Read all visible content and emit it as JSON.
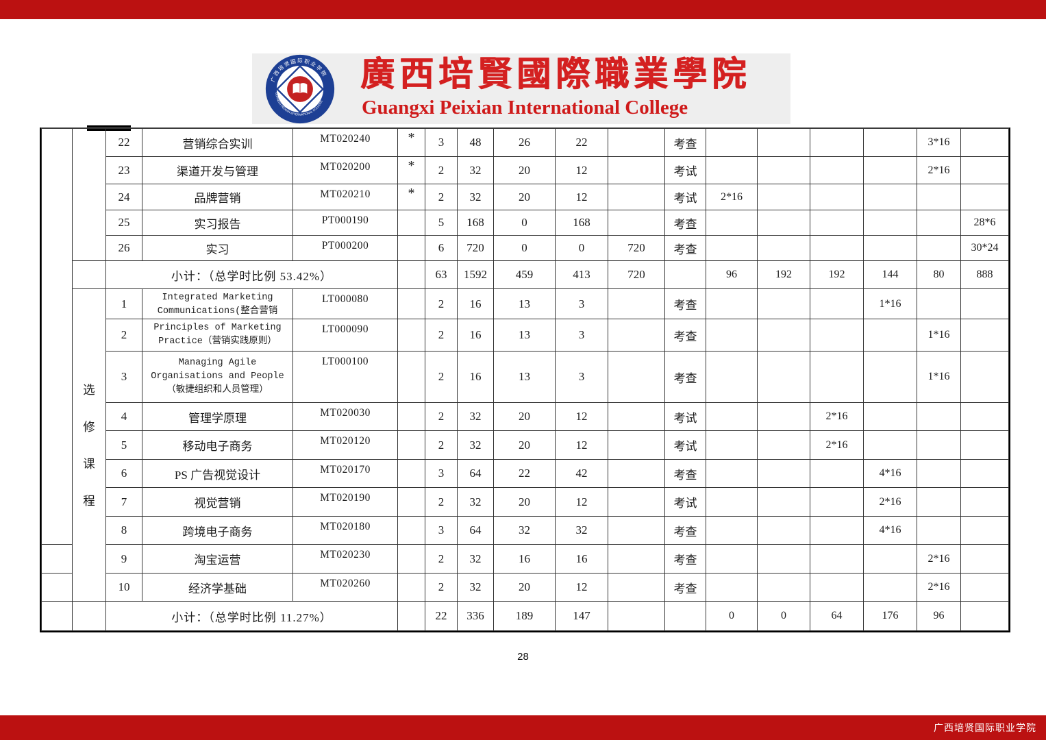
{
  "page": {
    "number": "28",
    "footer_right": "广西培贤国际职业学院"
  },
  "colors": {
    "bar_red": "#bb1111",
    "brand_red": "#d42020",
    "logo_blue": "#1d3f94",
    "logo_center_red": "#c42222",
    "header_bg": "#eeeeee",
    "table_border": "#333333"
  },
  "header": {
    "title_zh": "廣西培賢國際職業學院",
    "title_en": "Guangxi Peixian International College",
    "logo_ring_text_top": "广西培贤国际职业学院",
    "logo_ring_text_bottom": "GUANGXI PEIXIAN INTERNATIONAL COLLEGE"
  },
  "table": {
    "section_label": "选修课程",
    "compulsory": [
      {
        "no": "22",
        "name": "营销综合实训",
        "code": "MT020240",
        "star": "*",
        "credits": "3",
        "hours": "48",
        "theory": "26",
        "practice": "22",
        "extra": "",
        "assess": "考查",
        "sems": [
          "",
          "",
          "",
          "",
          "3*16",
          ""
        ]
      },
      {
        "no": "23",
        "name": "渠道开发与管理",
        "code": "MT020200",
        "star": "*",
        "credits": "2",
        "hours": "32",
        "theory": "20",
        "practice": "12",
        "extra": "",
        "assess": "考试",
        "sems": [
          "",
          "",
          "",
          "",
          "2*16",
          ""
        ]
      },
      {
        "no": "24",
        "name": "品牌营销",
        "code": "MT020210",
        "star": "*",
        "credits": "2",
        "hours": "32",
        "theory": "20",
        "practice": "12",
        "extra": "",
        "assess": "考试",
        "sems": [
          "2*16",
          "",
          "",
          "",
          "",
          ""
        ]
      },
      {
        "no": "25",
        "name": "实习报告",
        "code": "PT000190",
        "star": "",
        "credits": "5",
        "hours": "168",
        "theory": "0",
        "practice": "168",
        "extra": "",
        "assess": "考查",
        "sems": [
          "",
          "",
          "",
          "",
          "",
          "28*6"
        ]
      },
      {
        "no": "26",
        "name": "实习",
        "code": "PT000200",
        "star": "",
        "credits": "6",
        "hours": "720",
        "theory": "0",
        "practice": "0",
        "extra": "720",
        "assess": "考查",
        "sems": [
          "",
          "",
          "",
          "",
          "",
          "30*24"
        ]
      }
    ],
    "subtotal1": {
      "label": "小计：（总学时比例 53.42%）",
      "credits": "63",
      "hours": "1592",
      "theory": "459",
      "practice": "413",
      "extra": "720",
      "assess": "",
      "sems": [
        "96",
        "192",
        "192",
        "144",
        "80",
        "888"
      ]
    },
    "electives": [
      {
        "no": "1",
        "name_lines": [
          "Integrated Marketing",
          "Communications(整合营销"
        ],
        "clipped": true,
        "en": true,
        "code": "LT000080",
        "star": "",
        "credits": "2",
        "hours": "16",
        "theory": "13",
        "practice": "3",
        "extra": "",
        "assess": "考查",
        "sems": [
          "",
          "",
          "",
          "1*16",
          "",
          ""
        ]
      },
      {
        "no": "2",
        "name_lines": [
          "Principles of Marketing",
          "Practice（营销实践原则）"
        ],
        "en": true,
        "code": "LT000090",
        "star": "",
        "credits": "2",
        "hours": "16",
        "theory": "13",
        "practice": "3",
        "extra": "",
        "assess": "考查",
        "sems": [
          "",
          "",
          "",
          "",
          "1*16",
          ""
        ]
      },
      {
        "no": "3",
        "name_lines": [
          "Managing Agile",
          "Organisations and People",
          "（敏捷组织和人员管理）"
        ],
        "en": true,
        "code": "LT000100",
        "star": "",
        "credits": "2",
        "hours": "16",
        "theory": "13",
        "practice": "3",
        "extra": "",
        "assess": "考查",
        "sems": [
          "",
          "",
          "",
          "",
          "1*16",
          ""
        ]
      },
      {
        "no": "4",
        "name": "管理学原理",
        "code": "MT020030",
        "star": "",
        "credits": "2",
        "hours": "32",
        "theory": "20",
        "practice": "12",
        "extra": "",
        "assess": "考试",
        "sems": [
          "",
          "",
          "2*16",
          "",
          "",
          ""
        ]
      },
      {
        "no": "5",
        "name": "移动电子商务",
        "code": "MT020120",
        "star": "",
        "credits": "2",
        "hours": "32",
        "theory": "20",
        "practice": "12",
        "extra": "",
        "assess": "考试",
        "sems": [
          "",
          "",
          "2*16",
          "",
          "",
          ""
        ]
      },
      {
        "no": "6",
        "name": "PS 广告视觉设计",
        "code": "MT020170",
        "star": "",
        "credits": "3",
        "hours": "64",
        "theory": "22",
        "practice": "42",
        "extra": "",
        "assess": "考查",
        "sems": [
          "",
          "",
          "",
          "4*16",
          "",
          ""
        ]
      },
      {
        "no": "7",
        "name": "视觉营销",
        "code": "MT020190",
        "star": "",
        "credits": "2",
        "hours": "32",
        "theory": "20",
        "practice": "12",
        "extra": "",
        "assess": "考试",
        "sems": [
          "",
          "",
          "",
          "2*16",
          "",
          ""
        ]
      },
      {
        "no": "8",
        "name": "跨境电子商务",
        "code": "MT020180",
        "star": "",
        "credits": "3",
        "hours": "64",
        "theory": "32",
        "practice": "32",
        "extra": "",
        "assess": "考查",
        "sems": [
          "",
          "",
          "",
          "4*16",
          "",
          ""
        ]
      },
      {
        "no": "9",
        "name": "淘宝运营",
        "code": "MT020230",
        "star": "",
        "credits": "2",
        "hours": "32",
        "theory": "16",
        "practice": "16",
        "extra": "",
        "assess": "考查",
        "sems": [
          "",
          "",
          "",
          "",
          "2*16",
          ""
        ]
      },
      {
        "no": "10",
        "name": "经济学基础",
        "code": "MT020260",
        "star": "",
        "credits": "2",
        "hours": "32",
        "theory": "20",
        "practice": "12",
        "extra": "",
        "assess": "考查",
        "sems": [
          "",
          "",
          "",
          "",
          "2*16",
          ""
        ]
      }
    ],
    "subtotal2": {
      "label": "小计：（总学时比例 11.27%）",
      "credits": "22",
      "hours": "336",
      "theory": "189",
      "practice": "147",
      "extra": "",
      "assess": "",
      "sems": [
        "0",
        "0",
        "64",
        "176",
        "96",
        ""
      ]
    }
  }
}
